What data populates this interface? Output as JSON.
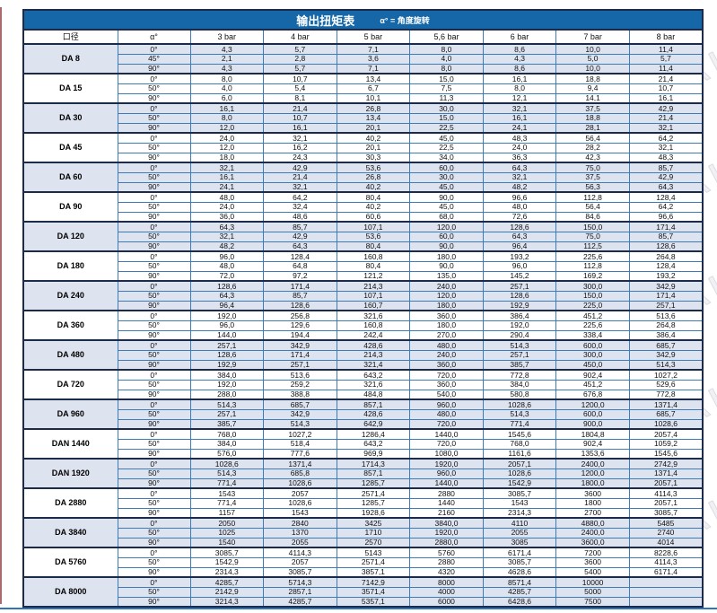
{
  "watermark": {
    "text": "CCLAIR"
  },
  "header": {
    "title": "输出扭矩表",
    "subtitle": "α° = 角度旋转"
  },
  "columns": [
    "口径",
    "α°",
    "3 bar",
    "4 bar",
    "5 bar",
    "5,6 bar",
    "6 bar",
    "7 bar",
    "8 bar"
  ],
  "colors": {
    "title_bar_bg": "#1567a8",
    "title_text": "#ffffff",
    "grid_line_blue": "#3e7cb9",
    "group_separator_dark": "#1c2b4a",
    "shaded_row_bg": "#dee3f0",
    "bottom_rule_blue": "#2e75b6",
    "edge_artifact_red": "#8c3a3a"
  },
  "groups": [
    {
      "size": "DA 8",
      "rows": [
        {
          "angle": "0°",
          "values": [
            "4,3",
            "5,7",
            "7,1",
            "8,0",
            "8,6",
            "10,0",
            "11,4"
          ]
        },
        {
          "angle": "45°",
          "values": [
            "2,1",
            "2,8",
            "3,6",
            "4,0",
            "4,3",
            "5,0",
            "5,7"
          ]
        },
        {
          "angle": "90°",
          "values": [
            "4,3",
            "5,7",
            "7,1",
            "8,0",
            "8,6",
            "10,0",
            "11,4"
          ]
        }
      ]
    },
    {
      "size": "DA 15",
      "rows": [
        {
          "angle": "0°",
          "values": [
            "8,0",
            "10,7",
            "13,4",
            "15,0",
            "16,1",
            "18,8",
            "21,4"
          ]
        },
        {
          "angle": "50°",
          "values": [
            "4,0",
            "5,4",
            "6,7",
            "7,5",
            "8,0",
            "9,4",
            "10,7"
          ]
        },
        {
          "angle": "90°",
          "values": [
            "6,0",
            "8,1",
            "10,1",
            "11,3",
            "12,1",
            "14,1",
            "16,1"
          ]
        }
      ]
    },
    {
      "size": "DA 30",
      "rows": [
        {
          "angle": "0°",
          "values": [
            "16,1",
            "21,4",
            "26,8",
            "30,0",
            "32,1",
            "37,5",
            "42,9"
          ]
        },
        {
          "angle": "50°",
          "values": [
            "8,0",
            "10,7",
            "13,4",
            "15,0",
            "16,1",
            "18,8",
            "21,4"
          ]
        },
        {
          "angle": "90°",
          "values": [
            "12,0",
            "16,1",
            "20,1",
            "22,5",
            "24,1",
            "28,1",
            "32,1"
          ]
        }
      ]
    },
    {
      "size": "DA 45",
      "rows": [
        {
          "angle": "0°",
          "values": [
            "24,0",
            "32,1",
            "40,2",
            "45,0",
            "48,3",
            "56,4",
            "64,2"
          ]
        },
        {
          "angle": "50°",
          "values": [
            "12,0",
            "16,2",
            "20,1",
            "22,5",
            "24,0",
            "28,2",
            "32,1"
          ]
        },
        {
          "angle": "90°",
          "values": [
            "18,0",
            "24,3",
            "30,3",
            "34,0",
            "36,3",
            "42,3",
            "48,3"
          ]
        }
      ]
    },
    {
      "size": "DA 60",
      "rows": [
        {
          "angle": "0°",
          "values": [
            "32,1",
            "42,9",
            "53,6",
            "60,0",
            "64,3",
            "75,0",
            "85,7"
          ]
        },
        {
          "angle": "50°",
          "values": [
            "16,1",
            "21,4",
            "26,8",
            "30,0",
            "32,1",
            "37,5",
            "42,9"
          ]
        },
        {
          "angle": "90°",
          "values": [
            "24,1",
            "32,1",
            "40,2",
            "45,0",
            "48,2",
            "56,3",
            "64,3"
          ]
        }
      ]
    },
    {
      "size": "DA 90",
      "rows": [
        {
          "angle": "0°",
          "values": [
            "48,0",
            "64,2",
            "80,4",
            "90,0",
            "96,6",
            "112,8",
            "128,4"
          ]
        },
        {
          "angle": "50°",
          "values": [
            "24,0",
            "32,4",
            "40,2",
            "45,0",
            "48,0",
            "56,4",
            "64,2"
          ]
        },
        {
          "angle": "90°",
          "values": [
            "36,0",
            "48,6",
            "60,6",
            "68,0",
            "72,6",
            "84,6",
            "96,6"
          ]
        }
      ]
    },
    {
      "size": "DA 120",
      "rows": [
        {
          "angle": "0°",
          "values": [
            "64,3",
            "85,7",
            "107,1",
            "120,0",
            "128,6",
            "150,0",
            "171,4"
          ]
        },
        {
          "angle": "50°",
          "values": [
            "32,1",
            "42,9",
            "53,6",
            "60,0",
            "64,3",
            "75,0",
            "85,7"
          ]
        },
        {
          "angle": "90°",
          "values": [
            "48,2",
            "64,3",
            "80,4",
            "90,0",
            "96,4",
            "112,5",
            "128,6"
          ]
        }
      ]
    },
    {
      "size": "DA 180",
      "rows": [
        {
          "angle": "0°",
          "values": [
            "96,0",
            "128,4",
            "160,8",
            "180,0",
            "193,2",
            "225,6",
            "264,8"
          ]
        },
        {
          "angle": "50°",
          "values": [
            "48,0",
            "64,8",
            "80,4",
            "90,0",
            "96,0",
            "112,8",
            "128,4"
          ]
        },
        {
          "angle": "90°",
          "values": [
            "72,0",
            "97,2",
            "121,2",
            "135,0",
            "145,2",
            "169,2",
            "193,2"
          ]
        }
      ]
    },
    {
      "size": "DA 240",
      "rows": [
        {
          "angle": "0°",
          "values": [
            "128,6",
            "171,4",
            "214,3",
            "240,0",
            "257,1",
            "300,0",
            "342,9"
          ]
        },
        {
          "angle": "50°",
          "values": [
            "64,3",
            "85,7",
            "107,1",
            "120,0",
            "128,6",
            "150,0",
            "171,4"
          ]
        },
        {
          "angle": "90°",
          "values": [
            "96,4",
            "128,6",
            "160,7",
            "180,0",
            "192,9",
            "225,0",
            "257,1"
          ]
        }
      ]
    },
    {
      "size": "DA 360",
      "rows": [
        {
          "angle": "0°",
          "values": [
            "192,0",
            "256,8",
            "321,6",
            "360,0",
            "386,4",
            "451,2",
            "513,6"
          ]
        },
        {
          "angle": "50°",
          "values": [
            "96,0",
            "129,6",
            "160,8",
            "180,0",
            "192,0",
            "225,6",
            "264,8"
          ]
        },
        {
          "angle": "90°",
          "values": [
            "144,0",
            "194,4",
            "242,4",
            "270,0",
            "290,4",
            "338,4",
            "386,4"
          ]
        }
      ]
    },
    {
      "size": "DA 480",
      "rows": [
        {
          "angle": "0°",
          "values": [
            "257,1",
            "342,9",
            "428,6",
            "480,0",
            "514,3",
            "600,0",
            "685,7"
          ]
        },
        {
          "angle": "50°",
          "values": [
            "128,6",
            "171,4",
            "214,3",
            "240,0",
            "257,1",
            "300,0",
            "342,9"
          ]
        },
        {
          "angle": "90°",
          "values": [
            "192,9",
            "257,1",
            "321,4",
            "360,0",
            "385,7",
            "450,0",
            "514,3"
          ]
        }
      ]
    },
    {
      "size": "DA 720",
      "rows": [
        {
          "angle": "0°",
          "values": [
            "384,0",
            "513,6",
            "643,2",
            "720,0",
            "772,8",
            "902,4",
            "1027,2"
          ]
        },
        {
          "angle": "50°",
          "values": [
            "192,0",
            "259,2",
            "321,6",
            "360,0",
            "384,0",
            "451,2",
            "529,6"
          ]
        },
        {
          "angle": "90°",
          "values": [
            "288,0",
            "388,8",
            "484,8",
            "540,0",
            "580,8",
            "676,8",
            "772,8"
          ]
        }
      ]
    },
    {
      "size": "DA 960",
      "rows": [
        {
          "angle": "0°",
          "values": [
            "514,3",
            "685,7",
            "857,1",
            "960,0",
            "1028,6",
            "1200,0",
            "1371,4"
          ]
        },
        {
          "angle": "50°",
          "values": [
            "257,1",
            "342,9",
            "428,6",
            "480,0",
            "514,3",
            "600,0",
            "685,7"
          ]
        },
        {
          "angle": "90°",
          "values": [
            "385,7",
            "514,3",
            "642,9",
            "720,0",
            "771,4",
            "900,0",
            "1028,6"
          ]
        }
      ]
    },
    {
      "size": "DAN 1440",
      "rows": [
        {
          "angle": "0°",
          "values": [
            "768,0",
            "1027,2",
            "1286,4",
            "1440,0",
            "1545,6",
            "1804,8",
            "2057,4"
          ]
        },
        {
          "angle": "50°",
          "values": [
            "384,0",
            "518,4",
            "643,2",
            "720,0",
            "768,0",
            "902,4",
            "1059,2"
          ]
        },
        {
          "angle": "90°",
          "values": [
            "576,0",
            "777,6",
            "969,9",
            "1080,0",
            "1161,6",
            "1353,6",
            "1545,6"
          ]
        }
      ]
    },
    {
      "size": "DAN 1920",
      "rows": [
        {
          "angle": "0°",
          "values": [
            "1028,6",
            "1371,4",
            "1714,3",
            "1920,0",
            "2057,1",
            "2400,0",
            "2742,9"
          ]
        },
        {
          "angle": "50°",
          "values": [
            "514,3",
            "685,8",
            "857,1",
            "960,0",
            "1028,6",
            "1200,0",
            "1371,4"
          ]
        },
        {
          "angle": "90°",
          "values": [
            "771,4",
            "1028,6",
            "1285,7",
            "1440,0",
            "1542,9",
            "1800,0",
            "2057,1"
          ]
        }
      ]
    },
    {
      "size": "DA 2880",
      "rows": [
        {
          "angle": "0°",
          "values": [
            "1543",
            "2057",
            "2571,4",
            "2880",
            "3085,7",
            "3600",
            "4114,3"
          ]
        },
        {
          "angle": "50°",
          "values": [
            "771,4",
            "1028,6",
            "1285,7",
            "1440",
            "1543",
            "1800",
            "2057,1"
          ]
        },
        {
          "angle": "90°",
          "values": [
            "1157",
            "1543",
            "1928,6",
            "2160",
            "2314,3",
            "2700",
            "3085,7"
          ]
        }
      ]
    },
    {
      "size": "DA 3840",
      "rows": [
        {
          "angle": "0°",
          "values": [
            "2050",
            "2840",
            "3425",
            "3840,0",
            "4110",
            "4880,0",
            "5485"
          ]
        },
        {
          "angle": "50°",
          "values": [
            "1025",
            "1370",
            "1710",
            "1920,0",
            "2055",
            "2400,0",
            "2740"
          ]
        },
        {
          "angle": "90°",
          "values": [
            "1540",
            "2055",
            "2570",
            "2880,0",
            "3085",
            "3600,0",
            "4014"
          ]
        }
      ]
    },
    {
      "size": "DA 5760",
      "rows": [
        {
          "angle": "0°",
          "values": [
            "3085,7",
            "4114,3",
            "5143",
            "5760",
            "6171,4",
            "7200",
            "8228,6"
          ]
        },
        {
          "angle": "50°",
          "values": [
            "1542,9",
            "2057",
            "2571,4",
            "2880",
            "3085,7",
            "3600",
            "4114,3"
          ]
        },
        {
          "angle": "90°",
          "values": [
            "2314,3",
            "3085,7",
            "3857,1",
            "4320",
            "4628,6",
            "5400",
            "6171,4"
          ]
        }
      ]
    },
    {
      "size": "DA 8000",
      "rows": [
        {
          "angle": "0°",
          "values": [
            "4285,7",
            "5714,3",
            "7142,9",
            "8000",
            "8571,4",
            "10000",
            ""
          ]
        },
        {
          "angle": "50°",
          "values": [
            "2142,9",
            "2857,1",
            "3571,4",
            "4000",
            "4285,7",
            "5000",
            ""
          ]
        },
        {
          "angle": "90°",
          "values": [
            "3214,3",
            "4285,7",
            "5357,1",
            "6000",
            "6428,6",
            "7500",
            ""
          ]
        }
      ]
    }
  ]
}
